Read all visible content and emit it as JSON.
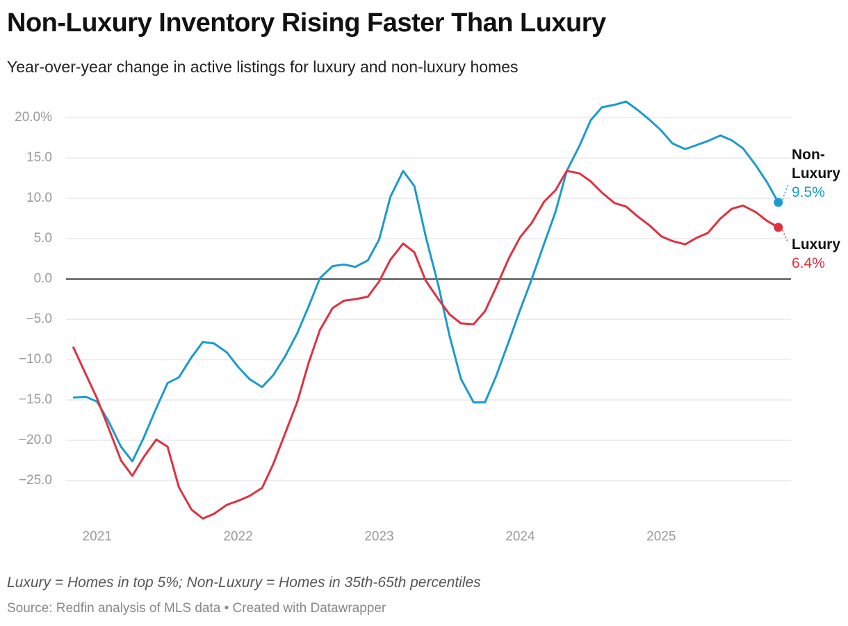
{
  "chart_data": {
    "type": "line",
    "title": "Non-Luxury Inventory Rising Faster Than Luxury",
    "subtitle": "Year-over-year change in active listings for luxury and non-luxury homes",
    "note": "Luxury = Homes in top 5%; Non-Luxury = Homes in 35th-65th percentiles",
    "source": "Source: Redfin analysis of MLS data • Created with Datawrapper",
    "x": [
      2020.83,
      2020.92,
      2021.0,
      2021.08,
      2021.17,
      2021.25,
      2021.33,
      2021.42,
      2021.5,
      2021.58,
      2021.67,
      2021.75,
      2021.83,
      2021.92,
      2022.0,
      2022.08,
      2022.17,
      2022.25,
      2022.33,
      2022.42,
      2022.5,
      2022.58,
      2022.67,
      2022.75,
      2022.83,
      2022.92,
      2023.0,
      2023.08,
      2023.17,
      2023.25,
      2023.33,
      2023.42,
      2023.5,
      2023.58,
      2023.67,
      2023.75,
      2023.83,
      2023.92,
      2024.0,
      2024.08,
      2024.17,
      2024.25,
      2024.33,
      2024.42,
      2024.5,
      2024.58,
      2024.67,
      2024.75,
      2024.83,
      2024.92,
      2025.0,
      2025.08,
      2025.17,
      2025.25,
      2025.33,
      2025.42,
      2025.5,
      2025.58,
      2025.67,
      2025.75,
      2025.83
    ],
    "xlim": [
      2020.78,
      2025.92
    ],
    "xticks": [
      2021,
      2022,
      2023,
      2024,
      2025
    ],
    "ylim": [
      -30,
      22
    ],
    "yticks": [
      {
        "value": 20,
        "label": "20.0%"
      },
      {
        "value": 15,
        "label": "15.0"
      },
      {
        "value": 10,
        "label": "10.0"
      },
      {
        "value": 5,
        "label": "5.0"
      },
      {
        "value": 0,
        "label": "0.0"
      },
      {
        "value": -5,
        "label": "−5.0"
      },
      {
        "value": -10,
        "label": "−10.0"
      },
      {
        "value": -15,
        "label": "−15.0"
      },
      {
        "value": -20,
        "label": "−20.0"
      },
      {
        "value": -25,
        "label": "−25.0"
      }
    ],
    "grid": true,
    "series": [
      {
        "name": "Non-Luxury",
        "color": "#1a9bcc",
        "values": [
          -14.7,
          -14.6,
          -15.2,
          -17.6,
          -20.8,
          -22.6,
          -19.7,
          -16.0,
          -12.9,
          -12.2,
          -9.7,
          -7.8,
          -8.0,
          -9.1,
          -10.9,
          -12.4,
          -13.4,
          -11.9,
          -9.7,
          -6.7,
          -3.4,
          0.1,
          1.6,
          1.8,
          1.5,
          2.3,
          4.9,
          10.2,
          13.4,
          11.5,
          5.3,
          -0.8,
          -7.1,
          -12.4,
          -15.3,
          -15.3,
          -12.0,
          -7.7,
          -3.8,
          -0.1,
          4.4,
          8.3,
          13.4,
          16.5,
          19.7,
          21.3,
          21.6,
          22.0,
          21.0,
          19.7,
          18.4,
          16.8,
          16.1,
          16.6,
          17.1,
          17.8,
          17.2,
          16.2,
          14.1,
          12.0,
          9.5
        ],
        "value_labels": [
          null,
          null,
          null,
          null,
          null,
          null,
          null,
          null,
          null,
          null,
          null,
          null,
          null,
          null,
          null,
          null,
          null,
          null,
          null,
          null,
          null,
          null,
          null,
          null,
          null,
          null,
          null,
          null,
          null,
          null,
          null,
          null,
          null,
          null,
          null,
          null,
          null,
          null,
          null,
          null,
          null,
          null,
          null,
          null,
          null,
          null,
          null,
          null,
          null,
          null,
          null,
          null,
          null,
          null,
          null,
          null,
          null,
          null,
          null,
          null,
          "9.5%"
        ]
      },
      {
        "name": "Luxury",
        "color": "#e03040",
        "values": [
          -8.4,
          -11.8,
          -14.8,
          -18.4,
          -22.5,
          -24.4,
          -22.1,
          -19.9,
          -20.8,
          -25.8,
          -28.6,
          -29.7,
          -29.1,
          -28.0,
          -27.5,
          -26.9,
          -25.9,
          -22.9,
          -19.3,
          -15.2,
          -10.4,
          -6.3,
          -3.6,
          -2.7,
          -2.5,
          -2.2,
          -0.3,
          2.4,
          4.4,
          3.3,
          -0.2,
          -2.5,
          -4.4,
          -5.5,
          -5.6,
          -4.0,
          -1.0,
          2.6,
          5.2,
          6.9,
          9.6,
          11.0,
          13.4,
          13.1,
          12.1,
          10.7,
          9.4,
          9.0,
          7.8,
          6.6,
          5.3,
          4.7,
          4.3,
          5.1,
          5.7,
          7.5,
          8.7,
          9.1,
          8.3,
          7.2,
          6.4
        ],
        "value_labels": [
          null,
          null,
          null,
          null,
          null,
          null,
          null,
          null,
          null,
          null,
          null,
          null,
          null,
          null,
          null,
          null,
          null,
          null,
          null,
          null,
          null,
          null,
          null,
          null,
          null,
          null,
          null,
          null,
          null,
          null,
          null,
          null,
          null,
          null,
          null,
          null,
          null,
          null,
          null,
          null,
          null,
          null,
          null,
          null,
          null,
          null,
          null,
          null,
          null,
          null,
          null,
          null,
          null,
          null,
          null,
          null,
          null,
          null,
          null,
          null,
          "6.4%"
        ]
      }
    ]
  }
}
